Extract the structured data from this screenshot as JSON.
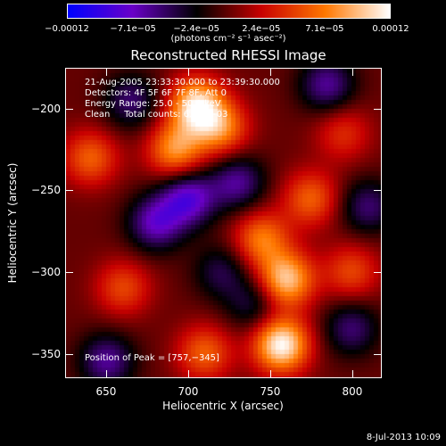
{
  "chart_data": {
    "type": "heatmap",
    "title": "Reconstructed RHESSI Image",
    "xlabel": "Heliocentric X (arcsec)",
    "ylabel": "Heliocentric Y (arcsec)",
    "xlim": [
      625,
      818
    ],
    "ylim": [
      -365,
      -175
    ],
    "x_ticks": [
      "650",
      "700",
      "750",
      "800"
    ],
    "y_ticks": [
      "−200",
      "−250",
      "−300",
      "−350"
    ],
    "x_tick_values": [
      650,
      700,
      750,
      800
    ],
    "y_tick_values": [
      -200,
      -250,
      -300,
      -350
    ],
    "colorbar": {
      "tick_labels": [
        "−0.00012",
        "−7.1e−05",
        "−2.4e−05",
        "2.4e−05",
        "7.1e−05",
        "0.00012"
      ],
      "tick_values": [
        -0.00012,
        -7.1e-05,
        -2.4e-05,
        2.4e-05,
        7.1e-05,
        0.00012
      ],
      "range": [
        -0.00012,
        0.00012
      ],
      "unit_label": "(photons cm⁻² s⁻¹ asec⁻²)",
      "colors": [
        "#0000ff",
        "#6a00c8",
        "#000000",
        "#c80000",
        "#ff7800",
        "#ffffff"
      ]
    },
    "annotations": {
      "time_range": "21‑Aug‑2005 23:33:30.000 to 23:39:30.000",
      "detectors": "Detectors: 4F 5F 6F 7F 8F, Att 0",
      "energy": "Energy Range: 25.0 ‑ 50.0 keV",
      "method": "Clean     Total counts: 6.56E+03",
      "peak": "Position of Peak = [757,−345]"
    },
    "peak_position": [
      757,
      -345
    ],
    "blobs": [
      {
        "x": 705,
        "y": -198,
        "amp": 0.00011
      },
      {
        "x": 692,
        "y": -225,
        "amp": 8e-05
      },
      {
        "x": 720,
        "y": -212,
        "amp": 7e-05
      },
      {
        "x": 757,
        "y": -345,
        "amp": 0.00012
      },
      {
        "x": 760,
        "y": -305,
        "amp": 0.0001
      },
      {
        "x": 745,
        "y": -280,
        "amp": 7e-05
      },
      {
        "x": 710,
        "y": -350,
        "amp": 6e-05
      },
      {
        "x": 775,
        "y": -255,
        "amp": 6e-05
      },
      {
        "x": 800,
        "y": -300,
        "amp": 5e-05
      },
      {
        "x": 640,
        "y": -230,
        "amp": 6e-05
      },
      {
        "x": 660,
        "y": -310,
        "amp": 5e-05
      },
      {
        "x": 795,
        "y": -215,
        "amp": 4e-05
      },
      {
        "x": 680,
        "y": -270,
        "amp": -7e-05
      },
      {
        "x": 700,
        "y": -255,
        "amp": -8e-05
      },
      {
        "x": 730,
        "y": -245,
        "amp": -6e-05
      },
      {
        "x": 650,
        "y": -355,
        "amp": -6e-05
      },
      {
        "x": 800,
        "y": -335,
        "amp": -5e-05
      },
      {
        "x": 785,
        "y": -185,
        "amp": -6e-05
      },
      {
        "x": 665,
        "y": -195,
        "amp": -5e-05
      },
      {
        "x": 740,
        "y": -320,
        "amp": -4e-05
      },
      {
        "x": 720,
        "y": -300,
        "amp": -4e-05
      },
      {
        "x": 810,
        "y": -260,
        "amp": -5e-05
      }
    ]
  },
  "footer": {
    "date": "8‑Jul‑2013 10:09"
  }
}
